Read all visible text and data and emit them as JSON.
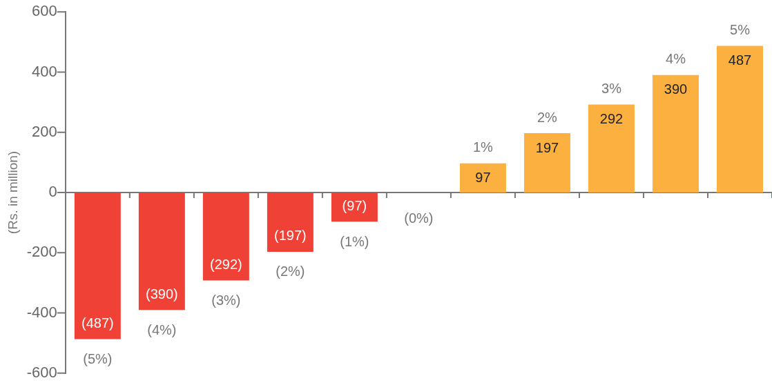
{
  "chart_data": {
    "type": "bar",
    "ylabel": "(Rs. in million)",
    "categories": [
      "(5%)",
      "(4%)",
      "(3%)",
      "(2%)",
      "(1%)",
      "(0%)",
      "1%",
      "2%",
      "3%",
      "4%",
      "5%"
    ],
    "values": [
      -487,
      -390,
      -292,
      -197,
      -97,
      0,
      97,
      197,
      292,
      390,
      487
    ],
    "value_labels": [
      "(487)",
      "(390)",
      "(292)",
      "(197)",
      "(97)",
      null,
      "97",
      "197",
      "292",
      "390",
      "487"
    ],
    "colors": [
      "#ef4136",
      "#ef4136",
      "#ef4136",
      "#ef4136",
      "#ef4136",
      "#ef4136",
      "#fbb040",
      "#fbb040",
      "#fbb040",
      "#fbb040",
      "#fbb040"
    ],
    "ylim": [
      -600,
      600
    ],
    "yticks": [
      -600,
      -400,
      -200,
      0,
      200,
      400,
      600
    ],
    "legend": false,
    "tick_labels": "y"
  }
}
